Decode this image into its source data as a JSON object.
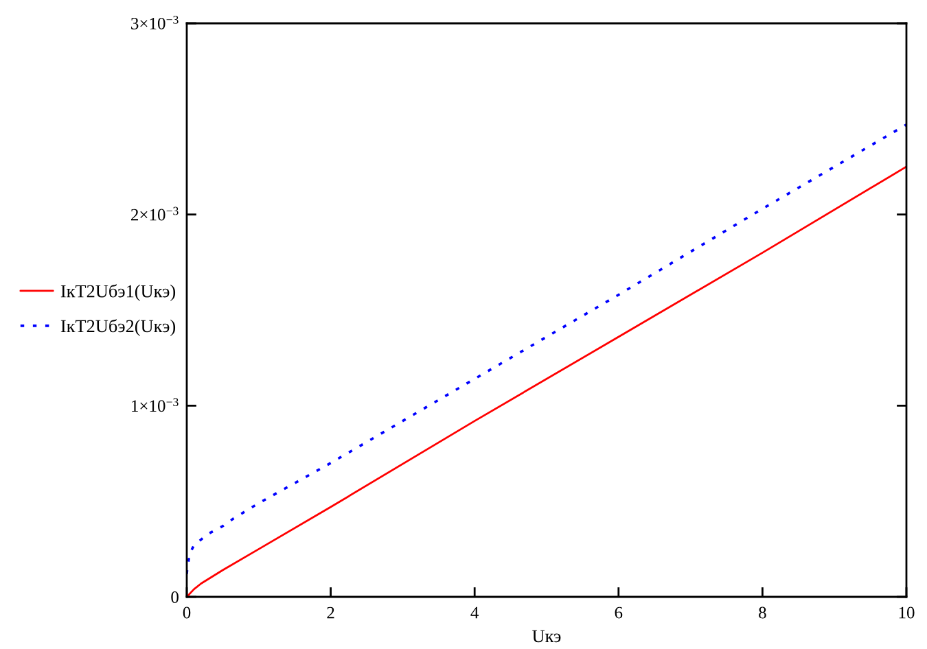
{
  "chart_data": {
    "type": "line",
    "xlabel": "Uкэ",
    "xlim": [
      0,
      10
    ],
    "xticks": [
      0,
      2,
      4,
      6,
      8,
      10
    ],
    "ylim": [
      0,
      0.003
    ],
    "yticks": [
      0,
      {
        "value": 0.001,
        "label": "1×10$^{−3}$"
      },
      {
        "value": 0.002,
        "label": "2×10$^{−3}$"
      },
      {
        "value": 0.003,
        "label": "3×10$^{−3}$"
      }
    ],
    "legend": "left",
    "line_style": "solid",
    "series": [
      {
        "name": "IкT2Uбэ1(Uкэ)",
        "color": "#ff0000",
        "x": [
          0,
          0.1,
          0.2,
          0.5,
          1,
          2,
          4,
          6,
          8,
          10
        ],
        "values": [
          0,
          4e-05,
          7e-05,
          0.00014,
          0.00025,
          0.00047,
          0.00092,
          0.00136,
          0.0018,
          0.00225
        ]
      },
      {
        "name": "IкT2Uбэ2(Uкэ)",
        "color": "#0000ff",
        "line_style": "dotted",
        "x": [
          0,
          0.01,
          0.03,
          0.06,
          0.1,
          0.2,
          0.3,
          0.5,
          0.65,
          1,
          2,
          4,
          6,
          8,
          10
        ],
        "values": [
          0.00012,
          0.00016,
          0.0002,
          0.00024,
          0.00027,
          0.0003,
          0.00033,
          0.00037,
          0.00041,
          0.00049,
          0.0007,
          0.00114,
          0.00158,
          0.00203,
          0.00247
        ]
      }
    ]
  }
}
